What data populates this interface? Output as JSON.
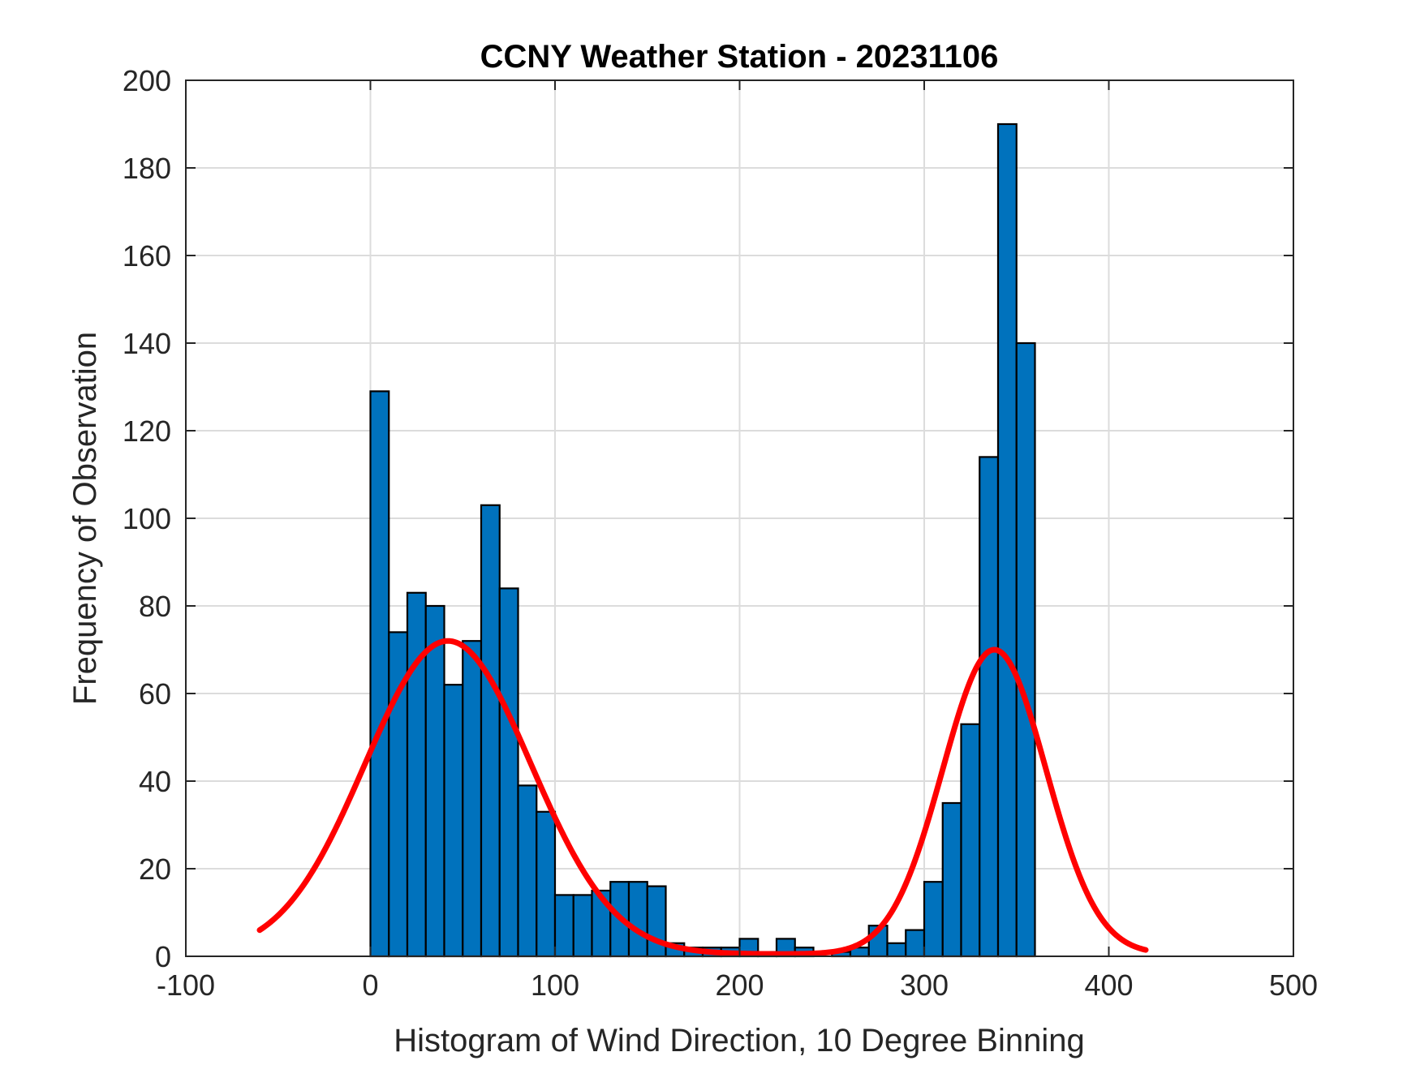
{
  "chart_data": {
    "type": "bar",
    "title": "CCNY Weather Station - 20231106",
    "xlabel": "Histogram of Wind Direction, 10 Degree Binning",
    "ylabel": "Frequency of Observation",
    "xlim": [
      -100,
      500
    ],
    "ylim": [
      0,
      200
    ],
    "xticks": [
      -100,
      0,
      100,
      200,
      300,
      400,
      500
    ],
    "yticks": [
      0,
      20,
      40,
      60,
      80,
      100,
      120,
      140,
      160,
      180,
      200
    ],
    "grid": true,
    "bin_width": 10,
    "bin_edges_start": [
      0,
      10,
      20,
      30,
      40,
      50,
      60,
      70,
      80,
      90,
      100,
      110,
      120,
      130,
      140,
      150,
      160,
      170,
      180,
      190,
      200,
      210,
      220,
      230,
      240,
      250,
      260,
      270,
      280,
      290,
      300,
      310,
      320,
      330,
      340,
      350
    ],
    "values": [
      129,
      74,
      83,
      80,
      62,
      72,
      103,
      84,
      39,
      33,
      14,
      14,
      15,
      17,
      17,
      16,
      3,
      2,
      2,
      2,
      4,
      1,
      4,
      2,
      0,
      1,
      2,
      7,
      3,
      6,
      17,
      35,
      53,
      114,
      190,
      140
    ],
    "bar_color": "#0072BD",
    "fit_curve": {
      "color": "#FF0000",
      "components": [
        {
          "amplitude": 71.5,
          "mean": 42,
          "sigma": 45
        },
        {
          "amplitude": 69.5,
          "mean": 338,
          "sigma": 28
        }
      ],
      "x_range": [
        -60,
        420
      ],
      "baseline": 0.5
    }
  }
}
